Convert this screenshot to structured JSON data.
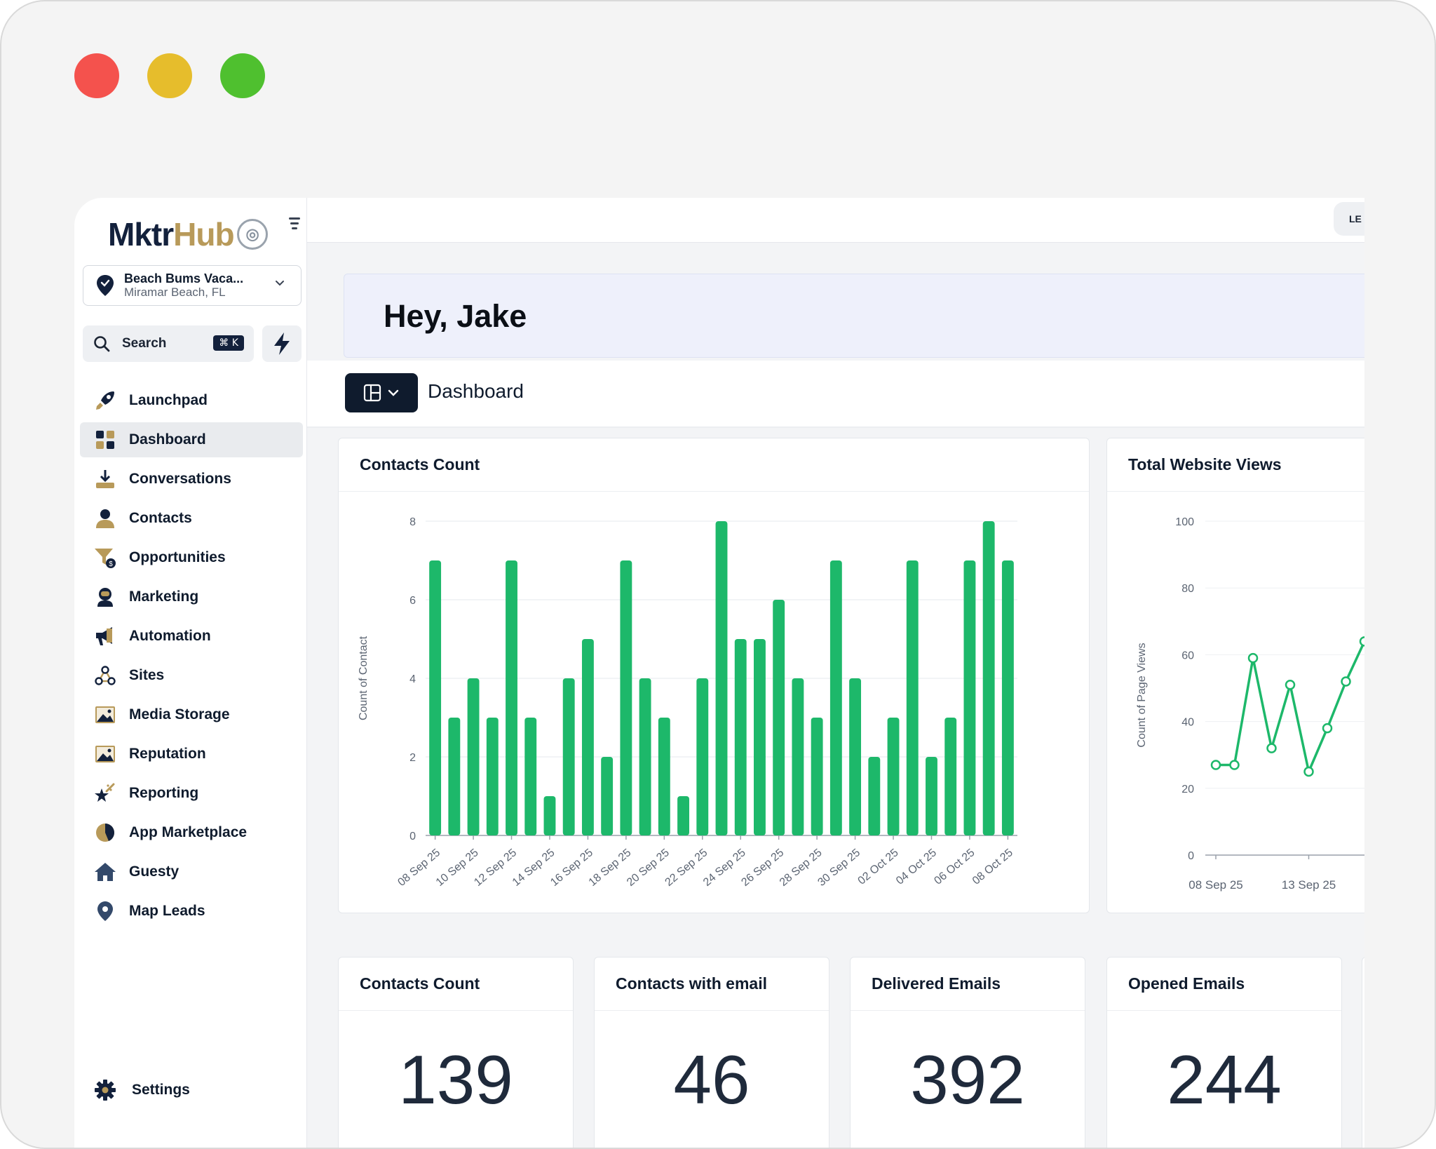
{
  "brand": {
    "mktr": "Mktr",
    "hub": "Hub"
  },
  "location": {
    "name": "Beach Bums Vaca...",
    "sub": "Miramar Beach, FL"
  },
  "search": {
    "label": "Search",
    "shortcut": "⌘ K"
  },
  "topbar": {
    "right_stub": "LE"
  },
  "nav": {
    "items": [
      {
        "label": "Launchpad",
        "icon": "rocket-icon"
      },
      {
        "label": "Dashboard",
        "icon": "dashboard-icon",
        "active": true
      },
      {
        "label": "Conversations",
        "icon": "inbox-download-icon"
      },
      {
        "label": "Contacts",
        "icon": "person-icon"
      },
      {
        "label": "Opportunities",
        "icon": "funnel-dollar-icon"
      },
      {
        "label": "Marketing",
        "icon": "astronaut-icon"
      },
      {
        "label": "Automation",
        "icon": "megaphone-icon"
      },
      {
        "label": "Sites",
        "icon": "network-icon"
      },
      {
        "label": "Media Storage",
        "icon": "image-icon"
      },
      {
        "label": "Reputation",
        "icon": "image-icon"
      },
      {
        "label": "Reporting",
        "icon": "star-wand-icon"
      },
      {
        "label": "App Marketplace",
        "icon": "pie-icon"
      },
      {
        "label": "Guesty",
        "icon": "house-icon"
      },
      {
        "label": "Map Leads",
        "icon": "map-pin-icon"
      }
    ],
    "settings": "Settings"
  },
  "welcome": {
    "greeting": "Hey, Jake"
  },
  "dashboard": {
    "title": "Dashboard"
  },
  "colors": {
    "navy": "#0f1b2d",
    "gold": "#b89a5a",
    "green": "#1db86a"
  },
  "cards": {
    "contacts_chart_title": "Contacts Count",
    "views_chart_title": "Total Website Views",
    "stats": [
      {
        "label": "Contacts Count",
        "value": "139"
      },
      {
        "label": "Contacts with email",
        "value": "46"
      },
      {
        "label": "Delivered Emails",
        "value": "392"
      },
      {
        "label": "Opened Emails",
        "value": "244"
      }
    ]
  },
  "chart_data": [
    {
      "type": "bar",
      "title": "Contacts Count",
      "ylabel": "Count of Contact",
      "ylim": [
        0,
        8
      ],
      "yticks": [
        0,
        2,
        4,
        6,
        8
      ],
      "xtick_labels": [
        "08 Sep 25",
        "10 Sep 25",
        "12 Sep 25",
        "14 Sep 25",
        "16 Sep 25",
        "18 Sep 25",
        "20 Sep 25",
        "22 Sep 25",
        "24 Sep 25",
        "26 Sep 25",
        "28 Sep 25",
        "30 Sep 25",
        "02 Oct 25",
        "04 Oct 25",
        "06 Oct 25",
        "08 Oct 25"
      ],
      "values": [
        7,
        3,
        4,
        3,
        7,
        3,
        1,
        4,
        5,
        2,
        7,
        4,
        3,
        1,
        4,
        8,
        5,
        5,
        6,
        4,
        3,
        7,
        4,
        2,
        3,
        7,
        2,
        3,
        7,
        8,
        7
      ],
      "color": "#1db86a",
      "grid": true
    },
    {
      "type": "line",
      "title": "Total Website Views",
      "ylabel": "Count of Page Views",
      "ylim": [
        0,
        100
      ],
      "yticks": [
        0,
        20,
        40,
        60,
        80,
        100
      ],
      "xtick_labels": [
        "08 Sep 25",
        "13 Sep 25"
      ],
      "values": [
        27,
        27,
        59,
        32,
        51,
        25,
        38,
        52,
        64
      ],
      "color": "#1db86a",
      "grid": true
    }
  ]
}
